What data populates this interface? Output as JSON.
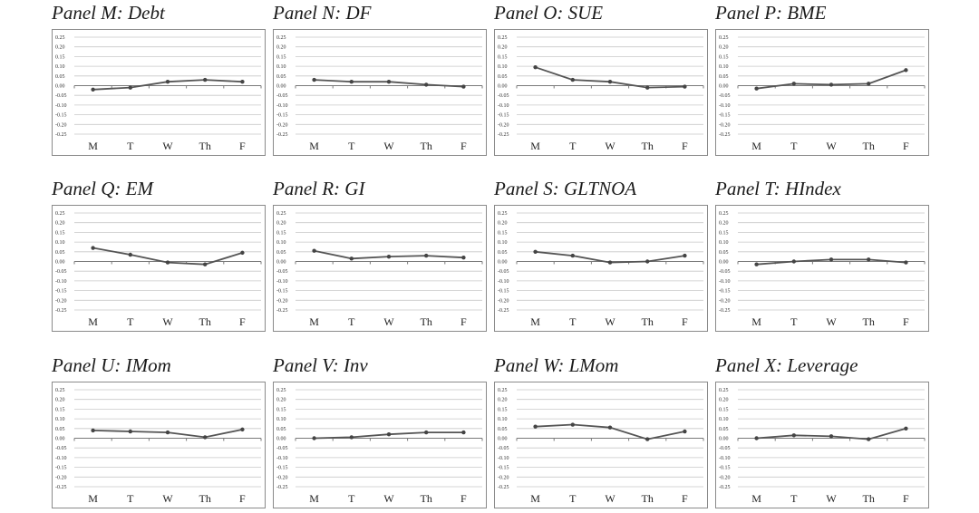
{
  "chart_data": [
    {
      "type": "line",
      "title": "Panel M: Debt",
      "categories": [
        "M",
        "T",
        "W",
        "Th",
        "F"
      ],
      "values": [
        -0.02,
        -0.01,
        0.02,
        0.03,
        0.02
      ],
      "ylim": [
        -0.25,
        0.25
      ],
      "yticks": [
        "0.25",
        "0.20",
        "0.15",
        "0.10",
        "0.05",
        "0.00",
        "-0.05",
        "-0.10",
        "-0.15",
        "-0.20",
        "-0.25"
      ],
      "grid": true
    },
    {
      "type": "line",
      "title": "Panel N: DF",
      "categories": [
        "M",
        "T",
        "W",
        "Th",
        "F"
      ],
      "values": [
        0.03,
        0.02,
        0.02,
        0.005,
        -0.005
      ],
      "ylim": [
        -0.25,
        0.25
      ],
      "yticks": [
        "0.25",
        "0.20",
        "0.15",
        "0.10",
        "0.05",
        "0.00",
        "-0.05",
        "-0.10",
        "-0.15",
        "-0.20",
        "-0.25"
      ],
      "grid": true
    },
    {
      "type": "line",
      "title": "Panel O: SUE",
      "categories": [
        "M",
        "T",
        "W",
        "Th",
        "F"
      ],
      "values": [
        0.095,
        0.03,
        0.02,
        -0.01,
        -0.005
      ],
      "ylim": [
        -0.25,
        0.25
      ],
      "yticks": [
        "0.25",
        "0.20",
        "0.15",
        "0.10",
        "0.05",
        "0.00",
        "-0.05",
        "-0.10",
        "-0.15",
        "-0.20",
        "-0.25"
      ],
      "grid": true
    },
    {
      "type": "line",
      "title": "Panel P: BME",
      "categories": [
        "M",
        "T",
        "W",
        "Th",
        "F"
      ],
      "values": [
        -0.015,
        0.01,
        0.005,
        0.01,
        0.08
      ],
      "ylim": [
        -0.25,
        0.25
      ],
      "yticks": [
        "0.25",
        "0.20",
        "0.15",
        "0.10",
        "0.05",
        "0.00",
        "-0.05",
        "-0.10",
        "-0.15",
        "-0.20",
        "-0.25"
      ],
      "grid": true
    },
    {
      "type": "line",
      "title": "Panel Q: EM",
      "categories": [
        "M",
        "T",
        "W",
        "Th",
        "F"
      ],
      "values": [
        0.07,
        0.035,
        -0.005,
        -0.015,
        0.045
      ],
      "ylim": [
        -0.25,
        0.25
      ],
      "yticks": [
        "0.25",
        "0.20",
        "0.15",
        "0.10",
        "0.05",
        "0.00",
        "-0.05",
        "-0.10",
        "-0.15",
        "-0.20",
        "-0.25"
      ],
      "grid": true
    },
    {
      "type": "line",
      "title": "Panel R: GI",
      "categories": [
        "M",
        "T",
        "W",
        "Th",
        "F"
      ],
      "values": [
        0.055,
        0.015,
        0.025,
        0.03,
        0.02
      ],
      "ylim": [
        -0.25,
        0.25
      ],
      "yticks": [
        "0.25",
        "0.20",
        "0.15",
        "0.10",
        "0.05",
        "0.00",
        "-0.05",
        "-0.10",
        "-0.15",
        "-0.20",
        "-0.25"
      ],
      "grid": true
    },
    {
      "type": "line",
      "title": "Panel S: GLTNOA",
      "categories": [
        "M",
        "T",
        "W",
        "Th",
        "F"
      ],
      "values": [
        0.05,
        0.03,
        -0.005,
        0.0,
        0.03
      ],
      "ylim": [
        -0.25,
        0.25
      ],
      "yticks": [
        "0.25",
        "0.20",
        "0.15",
        "0.10",
        "0.05",
        "0.00",
        "-0.05",
        "-0.10",
        "-0.15",
        "-0.20",
        "-0.25"
      ],
      "grid": true
    },
    {
      "type": "line",
      "title": "Panel T: HIndex",
      "categories": [
        "M",
        "T",
        "W",
        "Th",
        "F"
      ],
      "values": [
        -0.015,
        0.0,
        0.01,
        0.01,
        -0.005
      ],
      "ylim": [
        -0.25,
        0.25
      ],
      "yticks": [
        "0.25",
        "0.20",
        "0.15",
        "0.10",
        "0.05",
        "0.00",
        "-0.05",
        "-0.10",
        "-0.15",
        "-0.20",
        "-0.25"
      ],
      "grid": true
    },
    {
      "type": "line",
      "title": "Panel U: IMom",
      "categories": [
        "M",
        "T",
        "W",
        "Th",
        "F"
      ],
      "values": [
        0.04,
        0.035,
        0.03,
        0.005,
        0.045
      ],
      "ylim": [
        -0.25,
        0.25
      ],
      "yticks": [
        "0.25",
        "0.20",
        "0.15",
        "0.10",
        "0.05",
        "0.00",
        "-0.05",
        "-0.10",
        "-0.15",
        "-0.20",
        "-0.25"
      ],
      "grid": true
    },
    {
      "type": "line",
      "title": "Panel V: Inv",
      "categories": [
        "M",
        "T",
        "W",
        "Th",
        "F"
      ],
      "values": [
        0.0,
        0.005,
        0.02,
        0.03,
        0.03
      ],
      "ylim": [
        -0.25,
        0.25
      ],
      "yticks": [
        "0.25",
        "0.20",
        "0.15",
        "0.10",
        "0.05",
        "0.00",
        "-0.05",
        "-0.10",
        "-0.15",
        "-0.20",
        "-0.25"
      ],
      "grid": true
    },
    {
      "type": "line",
      "title": "Panel W: LMom",
      "categories": [
        "M",
        "T",
        "W",
        "Th",
        "F"
      ],
      "values": [
        0.06,
        0.07,
        0.055,
        -0.005,
        0.035
      ],
      "ylim": [
        -0.25,
        0.25
      ],
      "yticks": [
        "0.25",
        "0.20",
        "0.15",
        "0.10",
        "0.05",
        "0.00",
        "-0.05",
        "-0.10",
        "-0.15",
        "-0.20",
        "-0.25"
      ],
      "grid": true
    },
    {
      "type": "line",
      "title": "Panel X: Leverage",
      "categories": [
        "M",
        "T",
        "W",
        "Th",
        "F"
      ],
      "values": [
        0.0,
        0.015,
        0.01,
        -0.005,
        0.05
      ],
      "ylim": [
        -0.25,
        0.25
      ],
      "yticks": [
        "0.25",
        "0.20",
        "0.15",
        "0.10",
        "0.05",
        "0.00",
        "-0.05",
        "-0.10",
        "-0.15",
        "-0.20",
        "-0.25"
      ],
      "grid": true
    }
  ],
  "colors": {
    "line": "#555555",
    "marker": "#444444",
    "grid": "#c8c8c8",
    "border": "#8a8a8a"
  }
}
